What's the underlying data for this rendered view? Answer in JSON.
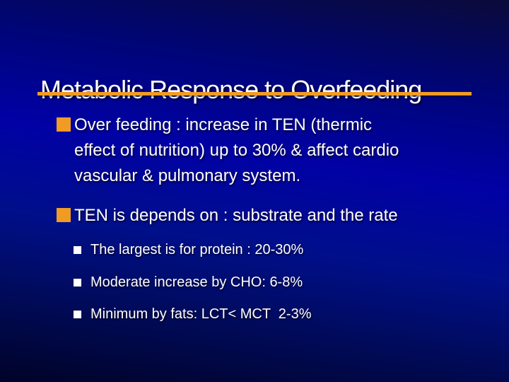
{
  "slide": {
    "title": "Metabolic Response to Overfeeding",
    "accent_color": "#f09c24",
    "sub_bullet_color": "#ffffff",
    "text_color": "#ffffff",
    "background": {
      "top": "#0b0b3a",
      "upper": "#000574",
      "bright_band": "#0101a5",
      "lower": "#000f8a",
      "deep": "#000a55",
      "bottom": "#000328"
    },
    "bullets": [
      {
        "level": 1,
        "icon": "orange-square-bullet",
        "lines": [
          "Over feeding : increase in TEN (thermic",
          "effect of nutrition) up to 30% & affect cardio",
          "vascular & pulmonary system."
        ]
      },
      {
        "level": 1,
        "icon": "orange-square-bullet",
        "lines": [
          "TEN is depends on : substrate and the rate"
        ]
      },
      {
        "level": 2,
        "icon": "white-square-bullet",
        "text": "The largest is for protein : 20-30%"
      },
      {
        "level": 2,
        "icon": "white-square-bullet",
        "text": "Moderate increase by CHO: 6-8%"
      },
      {
        "level": 2,
        "icon": "white-square-bullet",
        "text": "Minimum by fats: LCT< MCT  2-3%"
      }
    ]
  }
}
